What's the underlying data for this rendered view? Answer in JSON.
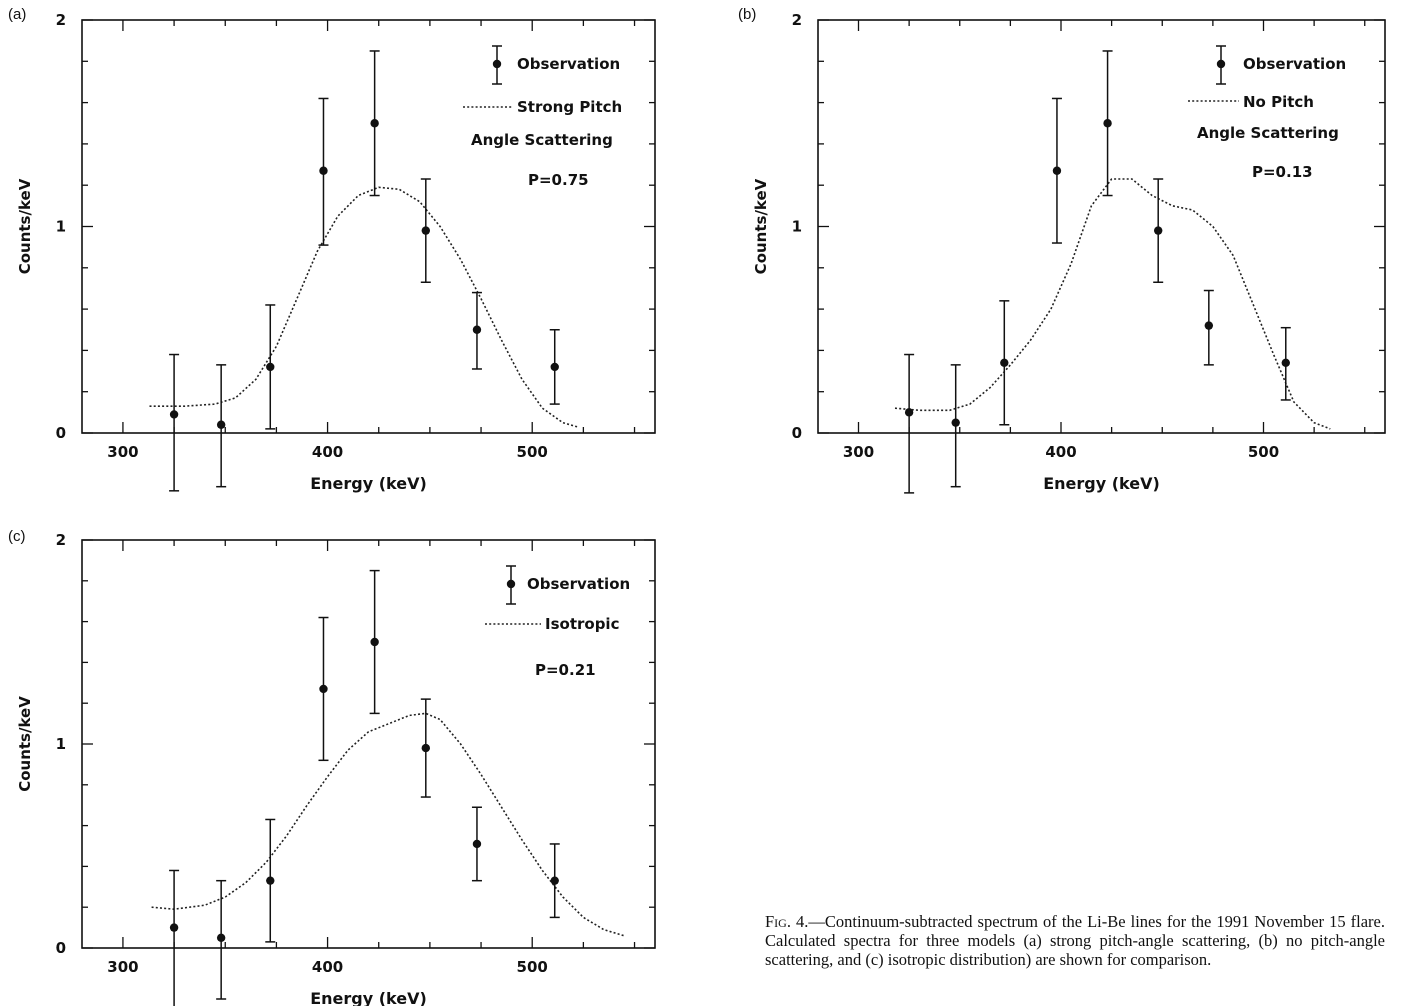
{
  "panels": [
    {
      "letter": "(a)",
      "xlabel": "Energy (keV)",
      "ylabel": "Counts/keV",
      "xticks": [
        "300",
        "400",
        "500"
      ],
      "yticks": [
        "0",
        "1",
        "2"
      ],
      "legend": {
        "observation": "Observation",
        "model_lines": [
          "Strong Pitch",
          "Angle Scattering"
        ],
        "p_value": "P=0.75"
      }
    },
    {
      "letter": "(b)",
      "xlabel": "Energy (keV)",
      "ylabel": "Counts/keV",
      "xticks": [
        "300",
        "400",
        "500"
      ],
      "yticks": [
        "0",
        "1",
        "2"
      ],
      "legend": {
        "observation": "Observation",
        "model_lines": [
          "No Pitch",
          "Angle Scattering"
        ],
        "p_value": "P=0.13"
      }
    },
    {
      "letter": "(c)",
      "xlabel": "Energy (keV)",
      "ylabel": "Counts/keV",
      "xticks": [
        "300",
        "400",
        "500"
      ],
      "yticks": [
        "0",
        "1",
        "2"
      ],
      "legend": {
        "observation": "Observation",
        "model_lines": [
          "Isotropic"
        ],
        "p_value": "P=0.21"
      }
    }
  ],
  "caption": {
    "prefix": "Fig. 4.",
    "text": "—Continuum-subtracted spectrum of the Li-Be lines for the 1991 November 15 flare. Calculated spectra for three models (a) strong pitch-angle scattering, (b) no pitch-angle scattering, and (c) isotropic distribution) are shown for comparison."
  },
  "chart_data": [
    {
      "type": "scatter",
      "xlim": [
        280,
        560
      ],
      "ylim": [
        0,
        2
      ],
      "observation": {
        "x": [
          325,
          348,
          372,
          398,
          423,
          448,
          473,
          511
        ],
        "y": [
          0.09,
          0.04,
          0.32,
          1.27,
          1.5,
          0.98,
          0.5,
          0.32
        ],
        "err_low": [
          0.37,
          0.3,
          0.3,
          0.36,
          0.35,
          0.25,
          0.19,
          0.18
        ],
        "err_high": [
          0.29,
          0.29,
          0.3,
          0.35,
          0.35,
          0.25,
          0.18,
          0.18
        ]
      },
      "model": {
        "x": [
          313,
          330,
          345,
          355,
          365,
          375,
          385,
          395,
          405,
          415,
          425,
          435,
          445,
          455,
          465,
          475,
          485,
          495,
          505,
          515,
          522
        ],
        "y": [
          0.13,
          0.13,
          0.14,
          0.17,
          0.26,
          0.42,
          0.65,
          0.88,
          1.05,
          1.15,
          1.19,
          1.18,
          1.12,
          1.0,
          0.84,
          0.65,
          0.45,
          0.26,
          0.12,
          0.05,
          0.03
        ]
      }
    },
    {
      "type": "scatter",
      "xlim": [
        280,
        560
      ],
      "ylim": [
        0,
        2
      ],
      "observation": {
        "x": [
          325,
          348,
          372,
          398,
          423,
          448,
          473,
          511
        ],
        "y": [
          0.1,
          0.05,
          0.34,
          1.27,
          1.5,
          0.98,
          0.52,
          0.34
        ],
        "err_low": [
          0.39,
          0.31,
          0.3,
          0.35,
          0.35,
          0.25,
          0.19,
          0.18
        ],
        "err_high": [
          0.28,
          0.28,
          0.3,
          0.35,
          0.35,
          0.25,
          0.17,
          0.17
        ]
      },
      "model": {
        "x": [
          318,
          330,
          345,
          355,
          365,
          375,
          385,
          395,
          405,
          415,
          425,
          435,
          445,
          455,
          465,
          475,
          485,
          495,
          505,
          515,
          525,
          533
        ],
        "y": [
          0.12,
          0.11,
          0.11,
          0.14,
          0.22,
          0.33,
          0.45,
          0.6,
          0.82,
          1.1,
          1.23,
          1.23,
          1.15,
          1.1,
          1.08,
          1.0,
          0.86,
          0.62,
          0.38,
          0.15,
          0.05,
          0.02
        ]
      }
    },
    {
      "type": "scatter",
      "xlim": [
        280,
        560
      ],
      "ylim": [
        0,
        2
      ],
      "observation": {
        "x": [
          325,
          348,
          372,
          398,
          423,
          448,
          473,
          511
        ],
        "y": [
          0.1,
          0.05,
          0.33,
          1.27,
          1.5,
          0.98,
          0.51,
          0.33
        ],
        "err_low": [
          0.39,
          0.3,
          0.3,
          0.35,
          0.35,
          0.24,
          0.18,
          0.18
        ],
        "err_high": [
          0.28,
          0.28,
          0.3,
          0.35,
          0.35,
          0.24,
          0.18,
          0.18
        ]
      },
      "model": {
        "x": [
          314,
          325,
          340,
          350,
          360,
          370,
          380,
          390,
          400,
          410,
          420,
          430,
          440,
          448,
          455,
          465,
          475,
          485,
          495,
          505,
          515,
          525,
          535,
          545
        ],
        "y": [
          0.2,
          0.19,
          0.21,
          0.25,
          0.32,
          0.42,
          0.55,
          0.7,
          0.84,
          0.97,
          1.06,
          1.1,
          1.14,
          1.15,
          1.12,
          1.0,
          0.85,
          0.69,
          0.53,
          0.38,
          0.25,
          0.15,
          0.09,
          0.06
        ]
      }
    }
  ]
}
